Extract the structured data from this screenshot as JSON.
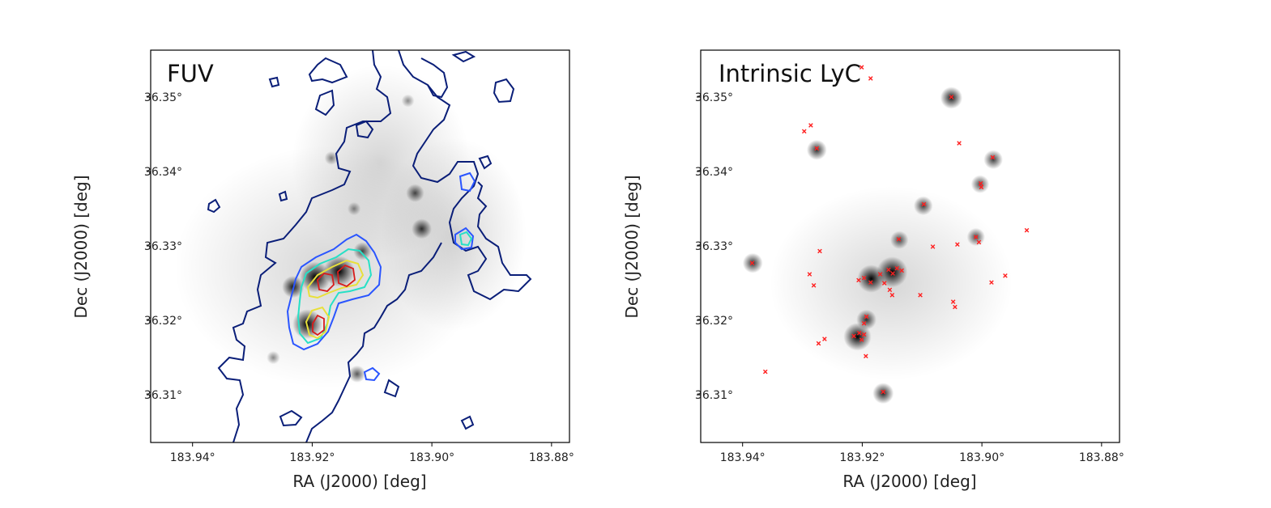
{
  "chart_data": [
    {
      "type": "heatmap",
      "title": "FUV",
      "xlabel": "RA (J2000) [deg]",
      "ylabel": "Dec (J2000) [deg]",
      "xlim": [
        183.947,
        183.877
      ],
      "ylim": [
        36.3036,
        36.3563
      ],
      "xticks": [
        183.94,
        183.92,
        183.9,
        183.88
      ],
      "xtick_labels": [
        "183.94°",
        "183.92°",
        "183.90°",
        "183.88°"
      ],
      "yticks": [
        36.31,
        36.32,
        36.33,
        36.34,
        36.35
      ],
      "ytick_labels": [
        "36.31°",
        "36.32°",
        "36.33°",
        "36.34°",
        "36.35°"
      ],
      "colormap": "Greys",
      "contour_colors": [
        "#0a1e78",
        "#2a55ff",
        "#27e0c6",
        "#e8e03a",
        "#d81b1b"
      ],
      "sources": [
        {
          "ra": 183.9195,
          "dec": 36.3258,
          "flux": 1.0
        },
        {
          "ra": 183.9155,
          "dec": 36.3266,
          "flux": 1.0
        },
        {
          "ra": 183.9232,
          "dec": 36.3245,
          "flux": 0.55
        },
        {
          "ra": 183.9208,
          "dec": 36.3195,
          "flux": 0.95
        },
        {
          "ra": 183.9116,
          "dec": 36.3293,
          "flux": 0.35
        },
        {
          "ra": 183.9028,
          "dec": 36.3371,
          "flux": 0.35
        },
        {
          "ra": 183.9017,
          "dec": 36.3323,
          "flux": 0.45
        },
        {
          "ra": 183.9125,
          "dec": 36.3128,
          "flux": 0.3
        },
        {
          "ra": 183.9168,
          "dec": 36.3418,
          "flux": 0.12
        },
        {
          "ra": 183.913,
          "dec": 36.335,
          "flux": 0.1
        },
        {
          "ra": 183.9265,
          "dec": 36.315,
          "flux": 0.1
        },
        {
          "ra": 183.904,
          "dec": 36.3495,
          "flux": 0.08
        }
      ]
    },
    {
      "type": "scatter",
      "title": "Intrinsic LyC",
      "xlabel": "RA (J2000) [deg]",
      "ylabel": "Dec (J2000) [deg]",
      "xlim": [
        183.947,
        183.877
      ],
      "ylim": [
        36.3036,
        36.3563
      ],
      "xticks": [
        183.94,
        183.92,
        183.9,
        183.88
      ],
      "xtick_labels": [
        "183.94°",
        "183.92°",
        "183.90°",
        "183.88°"
      ],
      "yticks": [
        36.31,
        36.32,
        36.33,
        36.34,
        36.35
      ],
      "ytick_labels": [
        "36.31°",
        "36.32°",
        "36.33°",
        "36.34°",
        "36.35°"
      ],
      "colormap": "Greys",
      "marker": "x",
      "marker_color": "#ff2020",
      "sources": [
        {
          "ra": 183.915,
          "dec": 36.3265,
          "flux": 1.0
        },
        {
          "ra": 183.9185,
          "dec": 36.3256,
          "flux": 0.85
        },
        {
          "ra": 183.9208,
          "dec": 36.3178,
          "flux": 0.85
        },
        {
          "ra": 183.9193,
          "dec": 36.3201,
          "flux": 0.45
        },
        {
          "ra": 183.9138,
          "dec": 36.3308,
          "flux": 0.35
        },
        {
          "ra": 183.9051,
          "dec": 36.3499,
          "flux": 0.55
        },
        {
          "ra": 183.9276,
          "dec": 36.3429,
          "flux": 0.45
        },
        {
          "ra": 183.8981,
          "dec": 36.3416,
          "flux": 0.4
        },
        {
          "ra": 183.9003,
          "dec": 36.3383,
          "flux": 0.35
        },
        {
          "ra": 183.9098,
          "dec": 36.3354,
          "flux": 0.4
        },
        {
          "ra": 183.901,
          "dec": 36.3312,
          "flux": 0.35
        },
        {
          "ra": 183.9383,
          "dec": 36.3277,
          "flux": 0.45
        },
        {
          "ra": 183.9165,
          "dec": 36.3102,
          "flux": 0.5
        }
      ],
      "points": [
        {
          "ra": 183.9201,
          "dec": 36.354
        },
        {
          "ra": 183.9186,
          "dec": 36.3525
        },
        {
          "ra": 183.9297,
          "dec": 36.3454
        },
        {
          "ra": 183.9286,
          "dec": 36.3462
        },
        {
          "ra": 183.9276,
          "dec": 36.3431
        },
        {
          "ra": 183.9051,
          "dec": 36.35
        },
        {
          "ra": 183.9038,
          "dec": 36.3438
        },
        {
          "ra": 183.8982,
          "dec": 36.3419
        },
        {
          "ra": 183.9002,
          "dec": 36.3384
        },
        {
          "ra": 183.9001,
          "dec": 36.3379
        },
        {
          "ra": 183.9097,
          "dec": 36.3356
        },
        {
          "ra": 183.901,
          "dec": 36.3312
        },
        {
          "ra": 183.9005,
          "dec": 36.3305
        },
        {
          "ra": 183.9041,
          "dec": 36.3302
        },
        {
          "ra": 183.8925,
          "dec": 36.3321
        },
        {
          "ra": 183.9139,
          "dec": 36.3309
        },
        {
          "ra": 183.9082,
          "dec": 36.3299
        },
        {
          "ra": 183.9271,
          "dec": 36.3293
        },
        {
          "ra": 183.9384,
          "dec": 36.3277
        },
        {
          "ra": 183.9288,
          "dec": 36.3262
        },
        {
          "ra": 183.9281,
          "dec": 36.3247
        },
        {
          "ra": 183.8961,
          "dec": 36.326
        },
        {
          "ra": 183.8984,
          "dec": 36.3251
        },
        {
          "ra": 183.9206,
          "dec": 36.3254
        },
        {
          "ra": 183.9197,
          "dec": 36.3257
        },
        {
          "ra": 183.9186,
          "dec": 36.3251
        },
        {
          "ra": 183.917,
          "dec": 36.3262
        },
        {
          "ra": 183.9156,
          "dec": 36.3268
        },
        {
          "ra": 183.9149,
          "dec": 36.3263
        },
        {
          "ra": 183.9142,
          "dec": 36.327
        },
        {
          "ra": 183.9134,
          "dec": 36.3267
        },
        {
          "ra": 183.9163,
          "dec": 36.325
        },
        {
          "ra": 183.9154,
          "dec": 36.3241
        },
        {
          "ra": 183.915,
          "dec": 36.3234
        },
        {
          "ra": 183.9103,
          "dec": 36.3234
        },
        {
          "ra": 183.9048,
          "dec": 36.3225
        },
        {
          "ra": 183.9045,
          "dec": 36.3218
        },
        {
          "ra": 183.9193,
          "dec": 36.3205
        },
        {
          "ra": 183.9197,
          "dec": 36.3196
        },
        {
          "ra": 183.9205,
          "dec": 36.3183
        },
        {
          "ra": 183.9214,
          "dec": 36.3179
        },
        {
          "ra": 183.9197,
          "dec": 36.3181
        },
        {
          "ra": 183.9201,
          "dec": 36.3174
        },
        {
          "ra": 183.9263,
          "dec": 36.3175
        },
        {
          "ra": 183.9273,
          "dec": 36.3169
        },
        {
          "ra": 183.9194,
          "dec": 36.3152
        },
        {
          "ra": 183.9362,
          "dec": 36.3131
        },
        {
          "ra": 183.9165,
          "dec": 36.3104
        }
      ]
    }
  ]
}
